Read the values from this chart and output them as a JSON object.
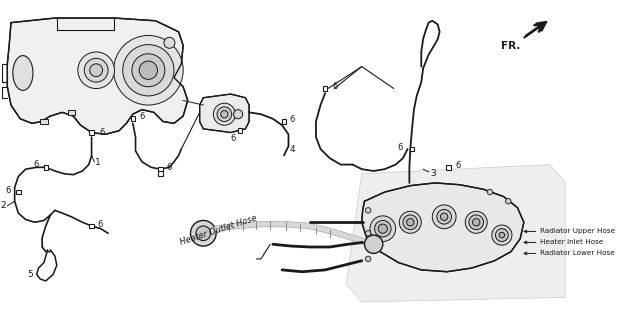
{
  "bg_color": "#ffffff",
  "lc": "#1a1a1a",
  "fig_width": 6.18,
  "fig_height": 3.2,
  "dpi": 100,
  "labels": {
    "fr": "FR.",
    "heater_outlet": "Heater Outlet Hose",
    "radiator_upper": "Radiator Upper Hose",
    "heater_inlet": "Heater Inlet Hose",
    "radiator_lower": "Radiator Lower Hose",
    "n1": "1",
    "n2": "2",
    "n3": "3",
    "n4": "4",
    "n5": "5",
    "n6": "6"
  }
}
